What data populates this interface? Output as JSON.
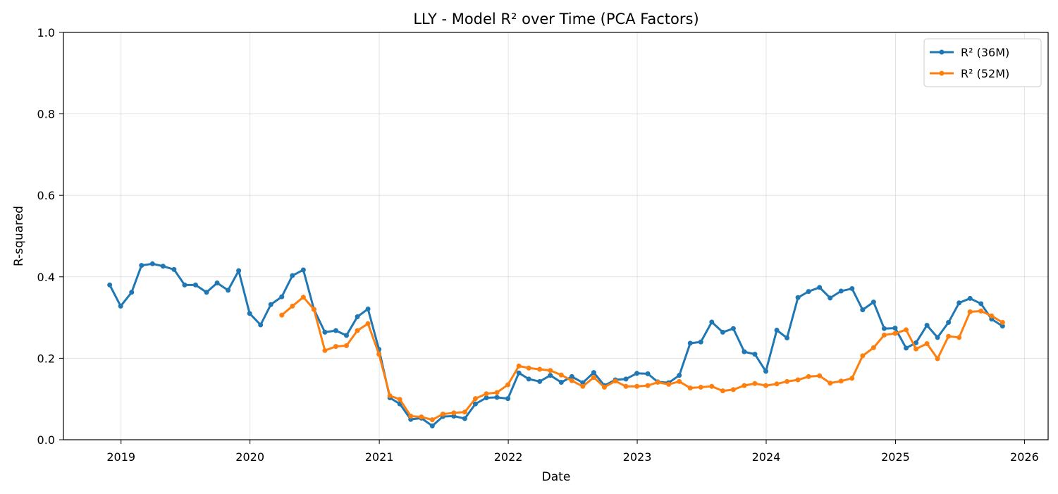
{
  "chart_data": {
    "type": "line",
    "title": "LLY - Model R² over Time (PCA Factors)",
    "xlabel": "Date",
    "ylabel": "R-squared",
    "ylim": [
      0,
      1
    ],
    "xlim": [
      "2018-07-22",
      "2026-03-09"
    ],
    "x_tick_labels": [
      "2019",
      "2020",
      "2021",
      "2022",
      "2023",
      "2024",
      "2025",
      "2026"
    ],
    "y_tick_labels": [
      "0.0",
      "0.2",
      "0.4",
      "0.6",
      "0.8",
      "1.0"
    ],
    "grid": true,
    "legend_position": "top-right",
    "series": [
      {
        "name": "R² (36M)",
        "color": "#1f77b4",
        "points": [
          [
            "2018-11-30",
            0.38
          ],
          [
            "2018-12-31",
            0.328
          ],
          [
            "2019-01-31",
            0.362
          ],
          [
            "2019-02-28",
            0.428
          ],
          [
            "2019-03-31",
            0.432
          ],
          [
            "2019-04-30",
            0.426
          ],
          [
            "2019-05-31",
            0.418
          ],
          [
            "2019-06-30",
            0.38
          ],
          [
            "2019-07-31",
            0.38
          ],
          [
            "2019-08-31",
            0.362
          ],
          [
            "2019-09-30",
            0.385
          ],
          [
            "2019-10-31",
            0.367
          ],
          [
            "2019-11-30",
            0.415
          ],
          [
            "2019-12-31",
            0.31
          ],
          [
            "2020-01-31",
            0.282
          ],
          [
            "2020-02-29",
            0.332
          ],
          [
            "2020-03-31",
            0.351
          ],
          [
            "2020-04-30",
            0.403
          ],
          [
            "2020-05-31",
            0.417
          ],
          [
            "2020-06-30",
            0.32
          ],
          [
            "2020-07-31",
            0.264
          ],
          [
            "2020-08-31",
            0.268
          ],
          [
            "2020-09-30",
            0.256
          ],
          [
            "2020-10-31",
            0.302
          ],
          [
            "2020-11-30",
            0.321
          ],
          [
            "2020-12-31",
            0.222
          ],
          [
            "2021-01-31",
            0.103
          ],
          [
            "2021-02-28",
            0.088
          ],
          [
            "2021-03-31",
            0.05
          ],
          [
            "2021-04-30",
            0.053
          ],
          [
            "2021-05-31",
            0.034
          ],
          [
            "2021-06-30",
            0.057
          ],
          [
            "2021-07-31",
            0.058
          ],
          [
            "2021-08-31",
            0.052
          ],
          [
            "2021-09-30",
            0.088
          ],
          [
            "2021-10-31",
            0.103
          ],
          [
            "2021-11-30",
            0.104
          ],
          [
            "2021-12-31",
            0.101
          ],
          [
            "2022-01-31",
            0.164
          ],
          [
            "2022-02-28",
            0.149
          ],
          [
            "2022-03-31",
            0.143
          ],
          [
            "2022-04-30",
            0.158
          ],
          [
            "2022-05-31",
            0.141
          ],
          [
            "2022-06-30",
            0.155
          ],
          [
            "2022-07-31",
            0.14
          ],
          [
            "2022-08-31",
            0.165
          ],
          [
            "2022-09-30",
            0.133
          ],
          [
            "2022-10-31",
            0.147
          ],
          [
            "2022-11-30",
            0.149
          ],
          [
            "2022-12-31",
            0.163
          ],
          [
            "2023-01-31",
            0.162
          ],
          [
            "2023-02-28",
            0.142
          ],
          [
            "2023-03-31",
            0.14
          ],
          [
            "2023-04-30",
            0.158
          ],
          [
            "2023-05-31",
            0.237
          ],
          [
            "2023-06-30",
            0.24
          ],
          [
            "2023-07-31",
            0.289
          ],
          [
            "2023-08-31",
            0.264
          ],
          [
            "2023-09-30",
            0.273
          ],
          [
            "2023-10-31",
            0.216
          ],
          [
            "2023-11-30",
            0.21
          ],
          [
            "2023-12-31",
            0.168
          ],
          [
            "2024-01-31",
            0.269
          ],
          [
            "2024-02-29",
            0.25
          ],
          [
            "2024-03-31",
            0.349
          ],
          [
            "2024-04-30",
            0.364
          ],
          [
            "2024-05-31",
            0.374
          ],
          [
            "2024-06-30",
            0.348
          ],
          [
            "2024-07-31",
            0.365
          ],
          [
            "2024-08-31",
            0.371
          ],
          [
            "2024-09-30",
            0.319
          ],
          [
            "2024-10-31",
            0.338
          ],
          [
            "2024-11-30",
            0.273
          ],
          [
            "2024-12-31",
            0.274
          ],
          [
            "2025-01-31",
            0.225
          ],
          [
            "2025-02-28",
            0.238
          ],
          [
            "2025-03-31",
            0.281
          ],
          [
            "2025-04-30",
            0.251
          ],
          [
            "2025-05-31",
            0.288
          ],
          [
            "2025-06-30",
            0.336
          ],
          [
            "2025-07-31",
            0.347
          ],
          [
            "2025-08-31",
            0.334
          ],
          [
            "2025-09-30",
            0.296
          ],
          [
            "2025-10-31",
            0.279
          ]
        ]
      },
      {
        "name": "R² (52M)",
        "color": "#ff7f0e",
        "points": [
          [
            "2020-03-31",
            0.306
          ],
          [
            "2020-04-30",
            0.328
          ],
          [
            "2020-05-31",
            0.35
          ],
          [
            "2020-06-30",
            0.32
          ],
          [
            "2020-07-31",
            0.219
          ],
          [
            "2020-08-31",
            0.229
          ],
          [
            "2020-09-30",
            0.231
          ],
          [
            "2020-10-31",
            0.268
          ],
          [
            "2020-11-30",
            0.285
          ],
          [
            "2020-12-31",
            0.21
          ],
          [
            "2021-01-31",
            0.108
          ],
          [
            "2021-02-28",
            0.099
          ],
          [
            "2021-03-31",
            0.058
          ],
          [
            "2021-04-30",
            0.056
          ],
          [
            "2021-05-31",
            0.049
          ],
          [
            "2021-06-30",
            0.063
          ],
          [
            "2021-07-31",
            0.066
          ],
          [
            "2021-08-31",
            0.068
          ],
          [
            "2021-09-30",
            0.101
          ],
          [
            "2021-10-31",
            0.113
          ],
          [
            "2021-11-30",
            0.116
          ],
          [
            "2021-12-31",
            0.135
          ],
          [
            "2022-01-31",
            0.181
          ],
          [
            "2022-02-28",
            0.176
          ],
          [
            "2022-03-31",
            0.173
          ],
          [
            "2022-04-30",
            0.17
          ],
          [
            "2022-05-31",
            0.159
          ],
          [
            "2022-06-30",
            0.145
          ],
          [
            "2022-07-31",
            0.131
          ],
          [
            "2022-08-31",
            0.153
          ],
          [
            "2022-09-30",
            0.129
          ],
          [
            "2022-10-31",
            0.144
          ],
          [
            "2022-11-30",
            0.131
          ],
          [
            "2022-12-31",
            0.131
          ],
          [
            "2023-01-31",
            0.133
          ],
          [
            "2023-02-28",
            0.141
          ],
          [
            "2023-03-31",
            0.136
          ],
          [
            "2023-04-30",
            0.143
          ],
          [
            "2023-05-31",
            0.127
          ],
          [
            "2023-06-30",
            0.129
          ],
          [
            "2023-07-31",
            0.131
          ],
          [
            "2023-08-31",
            0.12
          ],
          [
            "2023-09-30",
            0.123
          ],
          [
            "2023-10-31",
            0.133
          ],
          [
            "2023-11-30",
            0.138
          ],
          [
            "2023-12-31",
            0.133
          ],
          [
            "2024-01-31",
            0.137
          ],
          [
            "2024-02-29",
            0.143
          ],
          [
            "2024-03-31",
            0.147
          ],
          [
            "2024-04-30",
            0.155
          ],
          [
            "2024-05-31",
            0.157
          ],
          [
            "2024-06-30",
            0.139
          ],
          [
            "2024-07-31",
            0.144
          ],
          [
            "2024-08-31",
            0.151
          ],
          [
            "2024-09-30",
            0.206
          ],
          [
            "2024-10-31",
            0.226
          ],
          [
            "2024-11-30",
            0.257
          ],
          [
            "2024-12-31",
            0.261
          ],
          [
            "2025-01-31",
            0.27
          ],
          [
            "2025-02-28",
            0.223
          ],
          [
            "2025-03-31",
            0.236
          ],
          [
            "2025-04-30",
            0.199
          ],
          [
            "2025-05-31",
            0.254
          ],
          [
            "2025-06-30",
            0.251
          ],
          [
            "2025-07-31",
            0.314
          ],
          [
            "2025-08-31",
            0.316
          ],
          [
            "2025-09-30",
            0.304
          ],
          [
            "2025-10-31",
            0.288
          ]
        ]
      }
    ]
  }
}
